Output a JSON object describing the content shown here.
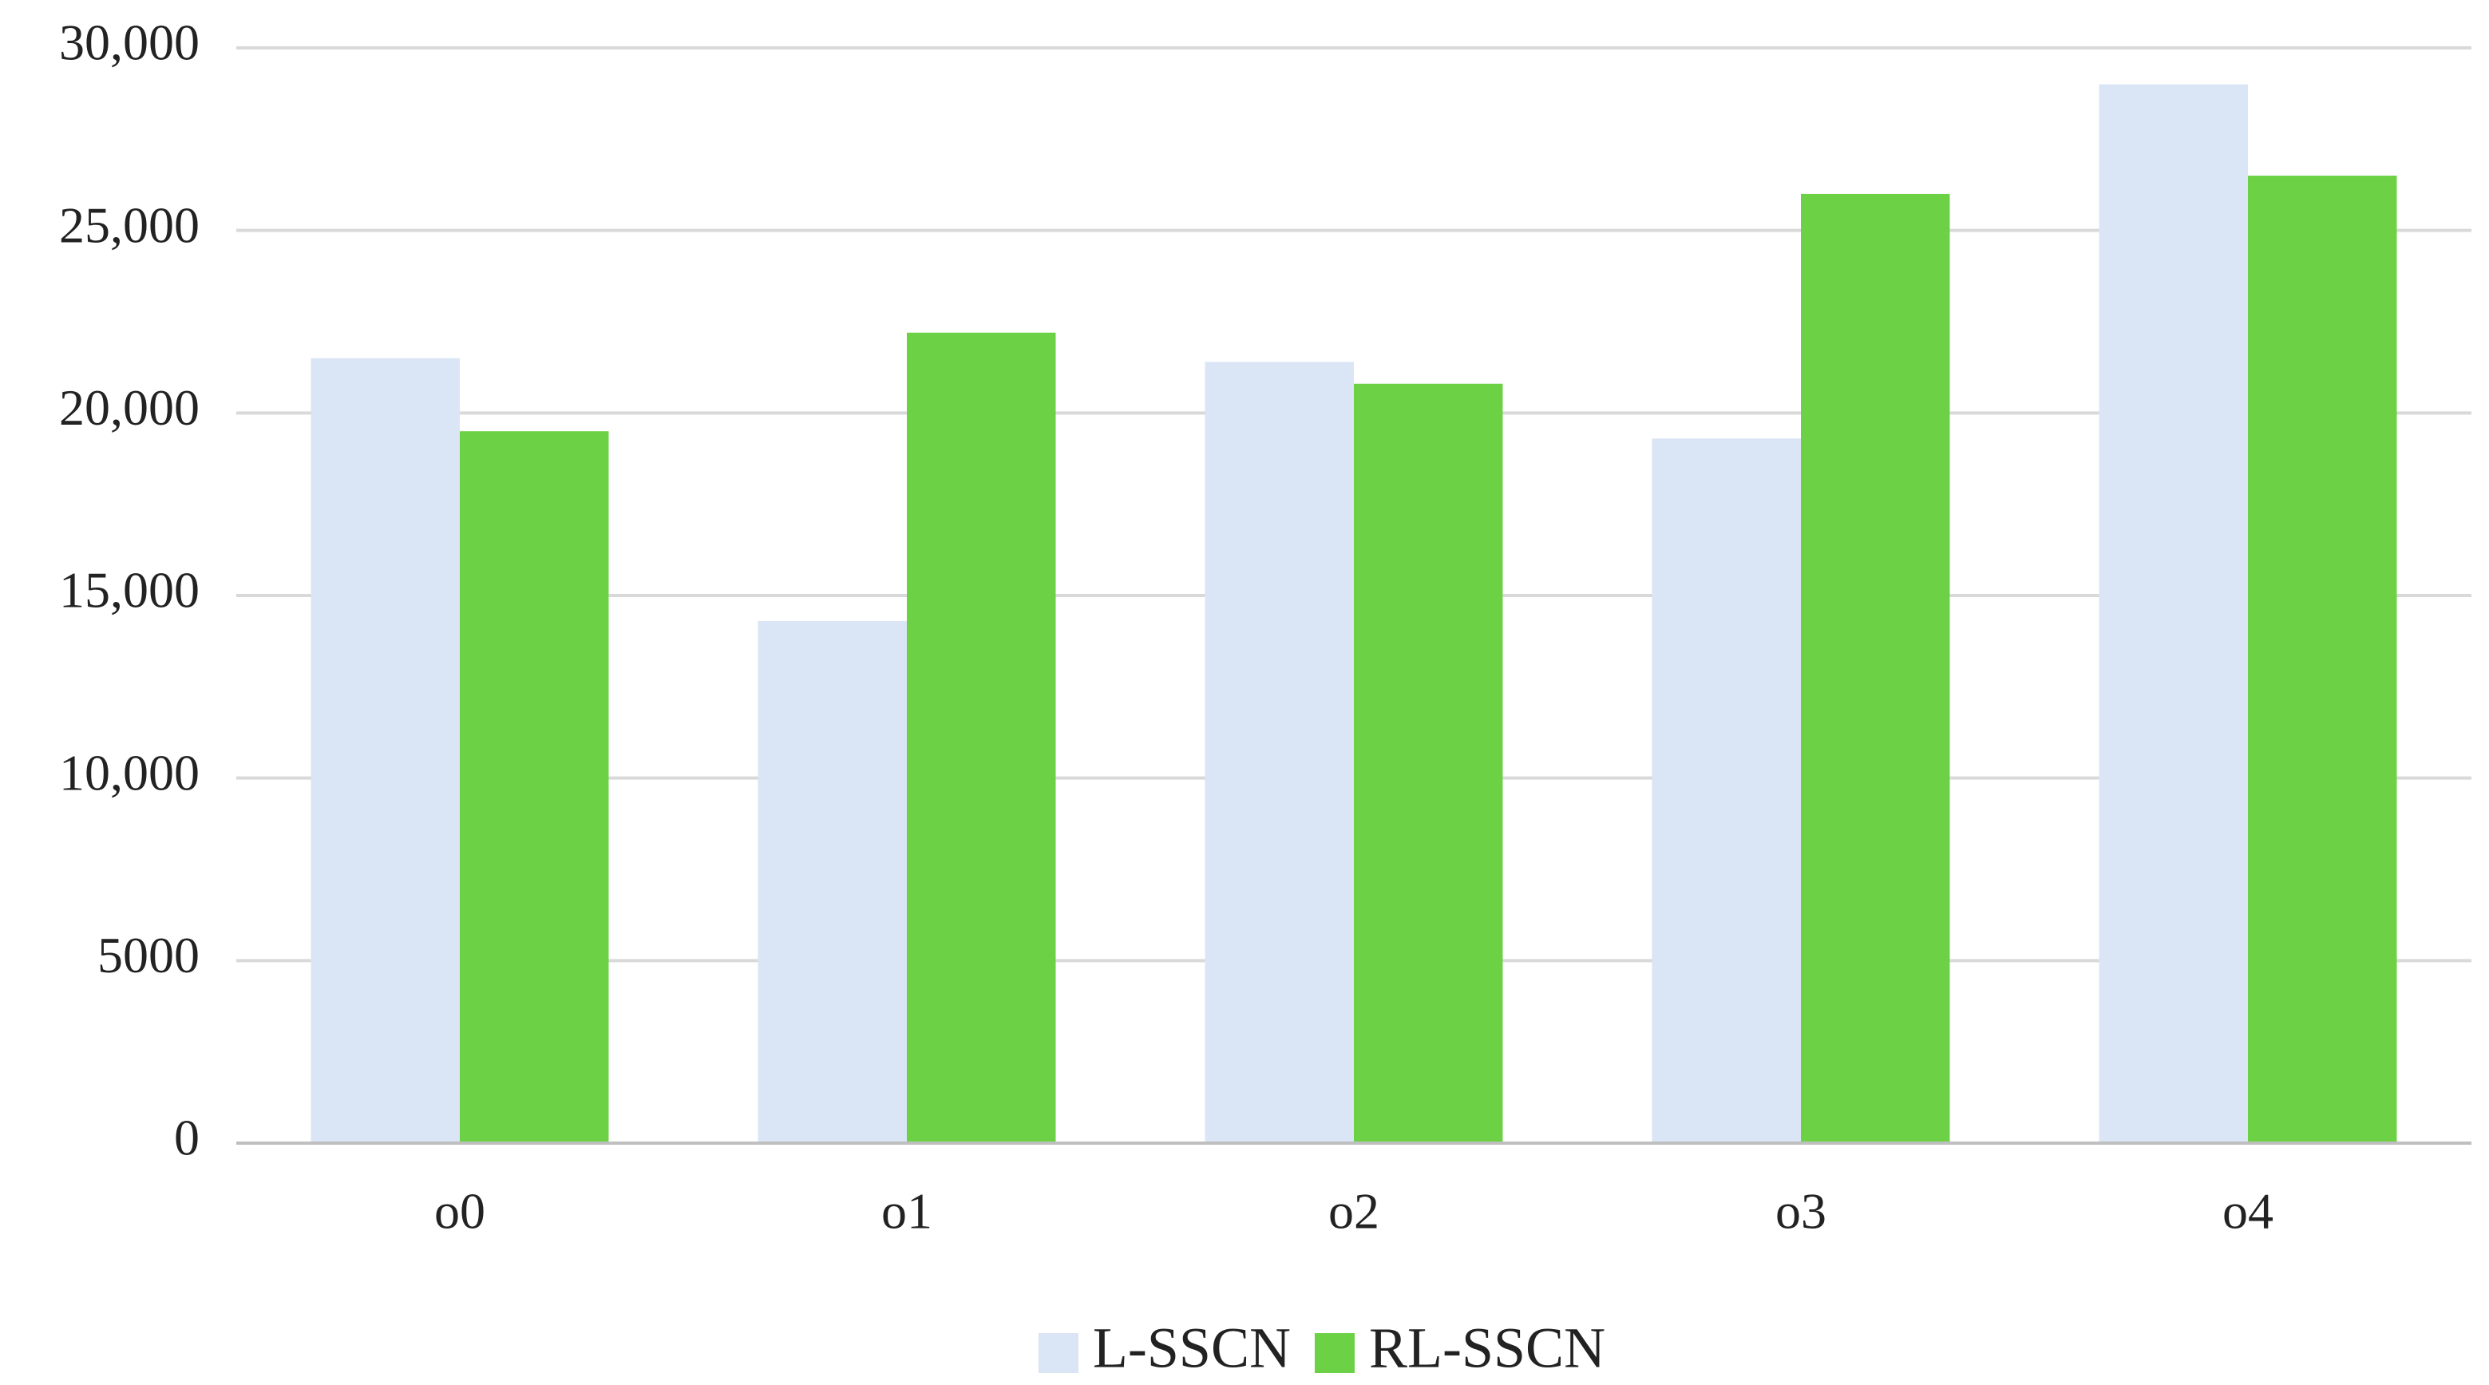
{
  "chart_data": {
    "type": "bar",
    "categories": [
      "o0",
      "o1",
      "o2",
      "o3",
      "o4"
    ],
    "series": [
      {
        "name": "L-SSCN",
        "color": "#dae5f5",
        "values": [
          21500,
          14300,
          21400,
          19300,
          29000
        ]
      },
      {
        "name": "RL-SSCN",
        "color": "#6dd145",
        "values": [
          19500,
          22200,
          20800,
          26000,
          26500
        ]
      }
    ],
    "ylim": [
      0,
      30000
    ],
    "yticks": [
      0,
      5000,
      {
        "value": 10000,
        "label": "10,000"
      },
      {
        "value": 15000,
        "label": "15,000"
      },
      {
        "value": 20000,
        "label": "20,000"
      },
      {
        "value": 25000,
        "label": "25,000"
      },
      {
        "value": 30000,
        "label": "30,000"
      }
    ],
    "grid": true,
    "legend": "bottom"
  }
}
